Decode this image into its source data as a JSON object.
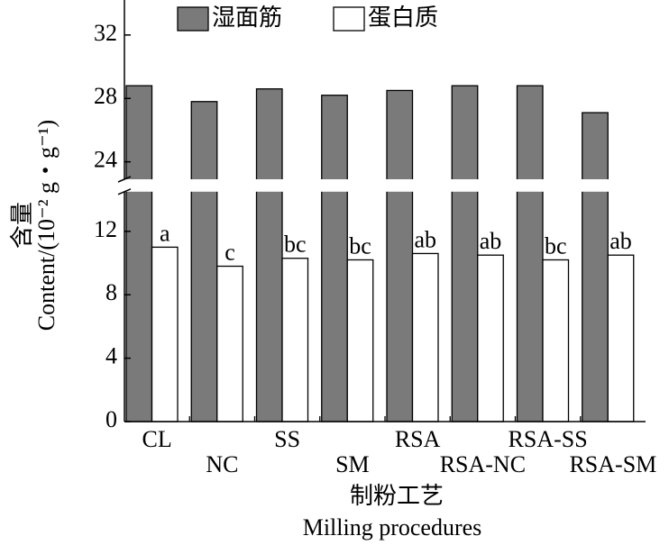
{
  "chart_data": {
    "type": "bar",
    "categories": [
      "CL",
      "NC",
      "SS",
      "SM",
      "RSA",
      "RSA-NC",
      "RSA-SS",
      "RSA-SM"
    ],
    "series": [
      {
        "name": "湿面筋",
        "color": "#7a7a7a",
        "values": [
          28.8,
          27.8,
          28.6,
          28.2,
          28.5,
          28.8,
          28.8,
          27.1
        ]
      },
      {
        "name": "蛋白质",
        "color": "#ffffff",
        "values": [
          11.0,
          9.8,
          10.3,
          10.2,
          10.6,
          10.5,
          10.2,
          10.5
        ],
        "value_labels": [
          "a",
          "c",
          "bc",
          "bc",
          "ab",
          "ab",
          "bc",
          "ab"
        ]
      }
    ],
    "ylim": [
      0,
      34
    ],
    "ybreak": [
      14.5,
      22.9
    ],
    "yticks": [
      0,
      4,
      8,
      12,
      24,
      28,
      32
    ],
    "y_label": [
      "含量",
      "Content/(10⁻² g・g⁻¹)"
    ],
    "x_label": [
      "制粉工艺",
      "Milling procedures"
    ],
    "legend": "top"
  }
}
